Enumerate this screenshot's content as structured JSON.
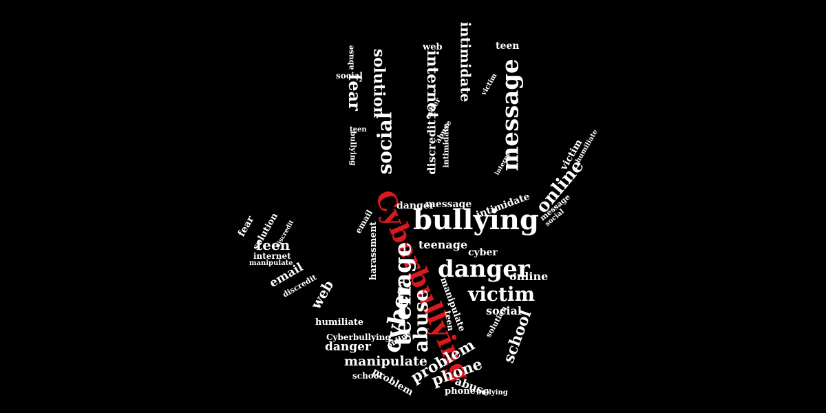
{
  "image": {
    "subject": "hand-shaped word cloud",
    "background_color": "#000000",
    "word_color": "#ffffff",
    "accent_color": "#d8191f"
  },
  "words": {
    "cyberbullying": "Cyberbullying",
    "bullying": "bullying",
    "danger": "danger",
    "victim": "victim",
    "message": "message",
    "online": "online",
    "social": "social",
    "solution": "solution",
    "fear": "fear",
    "internet": "internet",
    "intimidate": "intimidate",
    "teen": "teen",
    "teenage": "teenage",
    "cyber": "cyber",
    "abuse": "abuse",
    "manipulate": "manipulate",
    "problem": "problem",
    "phone": "phone",
    "school": "school",
    "email": "email",
    "web": "web",
    "discredit": "discredit",
    "humiliate": "humiliate",
    "harassment": "harassment"
  }
}
